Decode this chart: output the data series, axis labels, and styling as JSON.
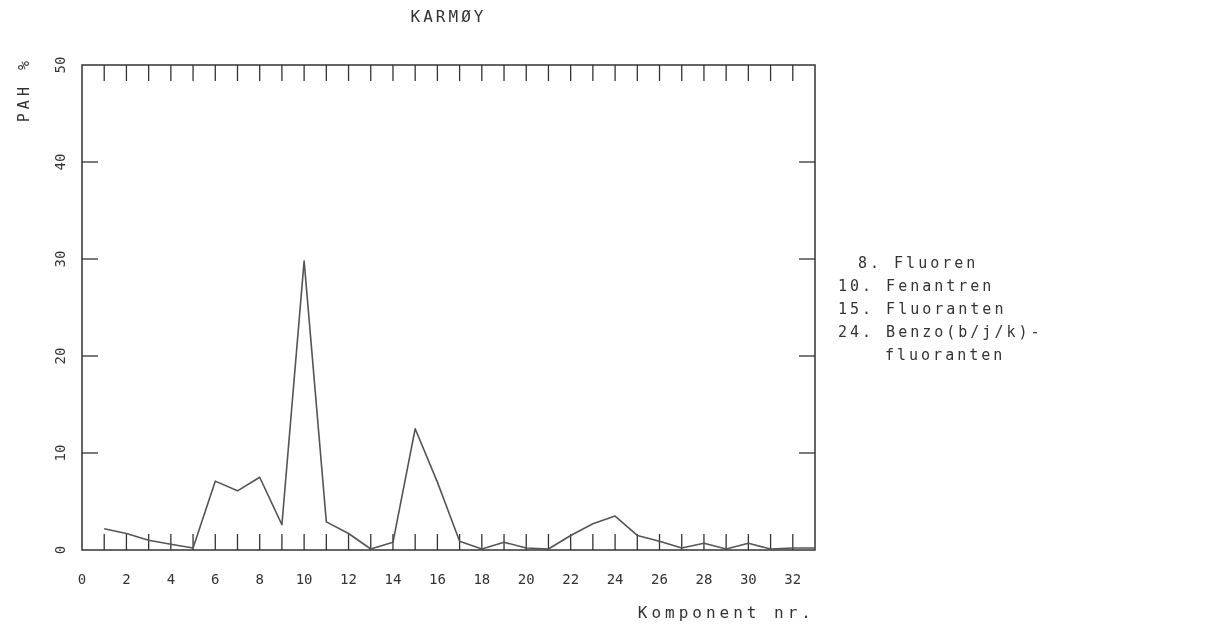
{
  "chart_data": {
    "type": "line",
    "title": "KARMØY",
    "xlabel": "Komponent nr.",
    "ylabel": "PAH %",
    "x": [
      1,
      2,
      3,
      4,
      5,
      6,
      7,
      8,
      9,
      10,
      11,
      12,
      13,
      14,
      15,
      16,
      17,
      18,
      19,
      20,
      21,
      22,
      23,
      24,
      25,
      26,
      27,
      28,
      29,
      30,
      31,
      32,
      33
    ],
    "series": [
      {
        "color": "#555555",
        "values": [
          2.2,
          1.7,
          1.0,
          0.6,
          0.2,
          7.1,
          6.1,
          7.5,
          2.6,
          29.8,
          2.9,
          1.7,
          0.1,
          0.8,
          12.5,
          7.0,
          0.9,
          0.1,
          0.8,
          0.2,
          0.1,
          1.5,
          2.7,
          3.5,
          1.5,
          0.9,
          0.2,
          0.7,
          0.1,
          0.7,
          0.1,
          0.2,
          0.2
        ]
      }
    ],
    "xlim": [
      0,
      33
    ],
    "xticks": [
      0,
      {
        "value": 1,
        "label": null
      },
      2,
      {
        "value": 3,
        "label": null
      },
      4,
      {
        "value": 5,
        "label": null
      },
      6,
      {
        "value": 7,
        "label": null
      },
      8,
      {
        "value": 9,
        "label": null
      },
      10,
      {
        "value": 11,
        "label": null
      },
      12,
      {
        "value": 13,
        "label": null
      },
      14,
      {
        "value": 15,
        "label": null
      },
      16,
      {
        "value": 17,
        "label": null
      },
      18,
      {
        "value": 19,
        "label": null
      },
      20,
      {
        "value": 21,
        "label": null
      },
      22,
      {
        "value": 23,
        "label": null
      },
      24,
      {
        "value": 25,
        "label": null
      },
      26,
      {
        "value": 27,
        "label": null
      },
      28,
      {
        "value": 29,
        "label": null
      },
      30,
      {
        "value": 31,
        "label": null
      },
      32
    ],
    "ylim": [
      0,
      50
    ],
    "yticks": [
      0,
      10,
      20,
      30,
      40,
      50
    ],
    "grid": false,
    "marker": "none",
    "line_style": "solid",
    "annotations": [
      "8. Fluoren",
      "10. Fenantren",
      "15. Fluoranten",
      "24. Benzo(b/j/k)-",
      "fluoranten"
    ]
  }
}
